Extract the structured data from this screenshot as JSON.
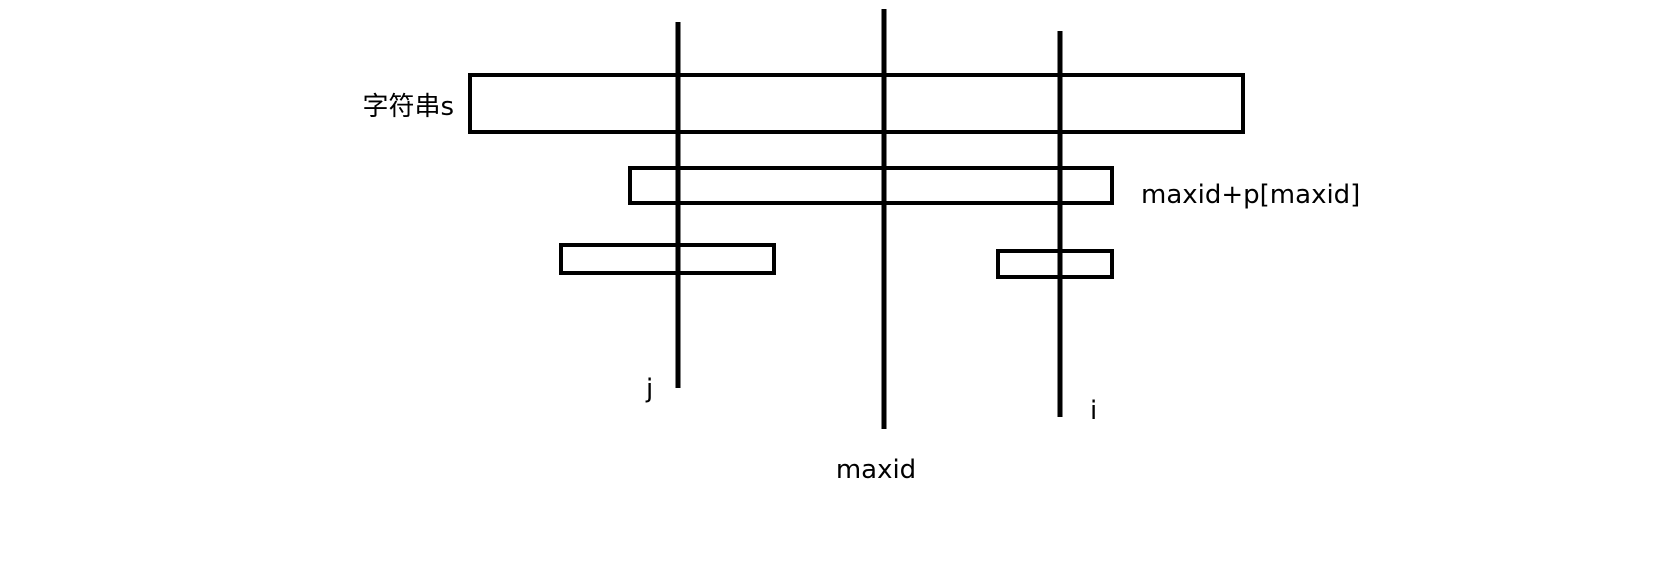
{
  "labels": {
    "string_s": "字符串s",
    "right_boundary": "maxid+p[maxid]",
    "j": "j",
    "maxid": "maxid",
    "i": "i"
  },
  "colors": {
    "stroke": "#000000",
    "background": "#ffffff"
  }
}
